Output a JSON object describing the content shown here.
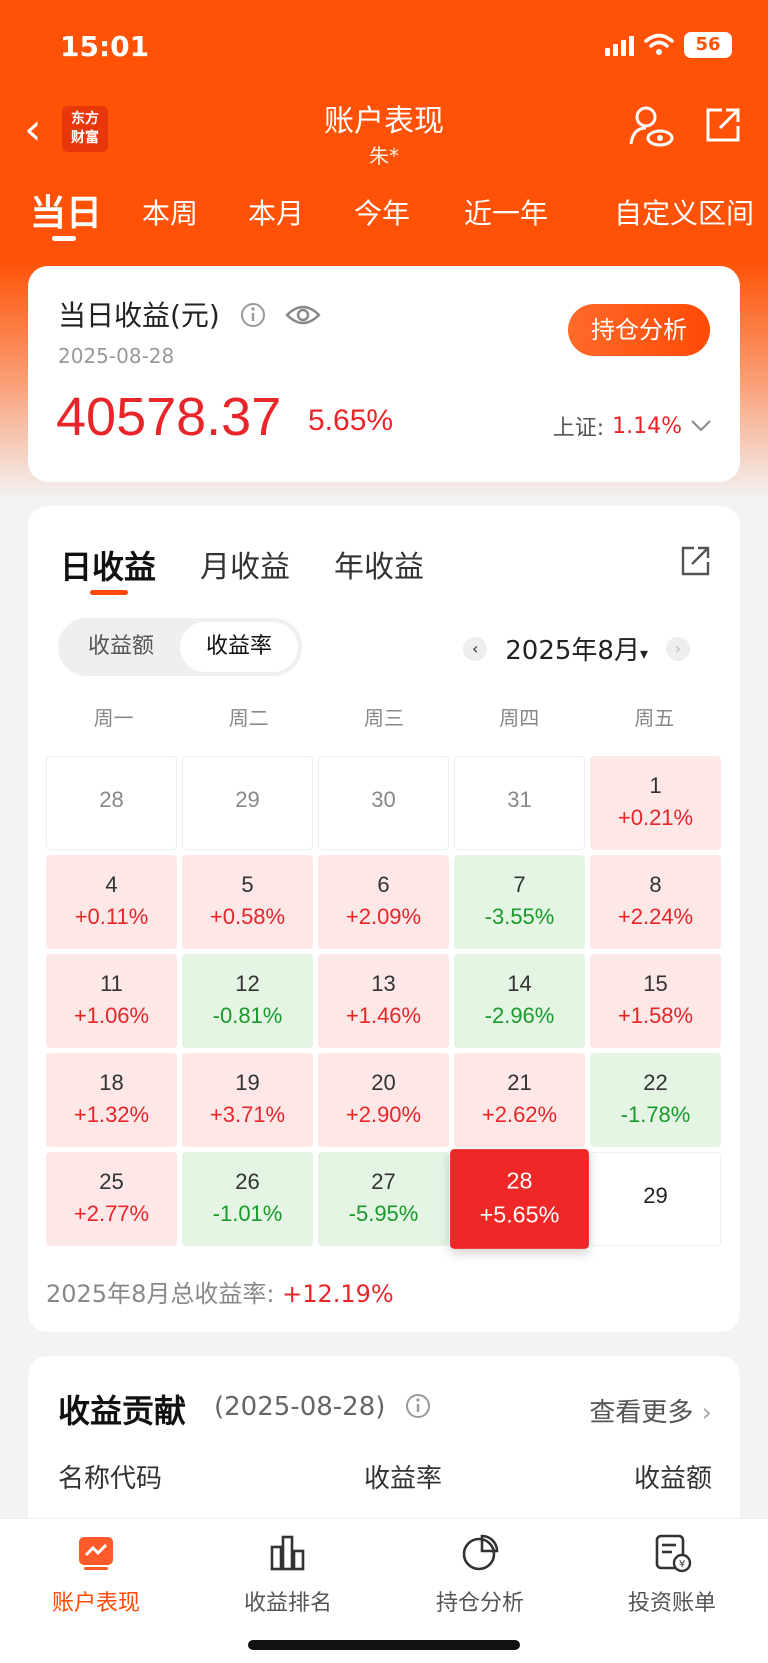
{
  "status": {
    "time": "15:01",
    "battery": "56"
  },
  "nav": {
    "logo": "东方财富",
    "title": "账户表现",
    "subtitle": "朱*"
  },
  "tabs": [
    "当日",
    "本周",
    "本月",
    "今年",
    "近一年",
    "自定义区间"
  ],
  "summary": {
    "title": "当日收益(元)",
    "date": "2025-08-28",
    "amount": "40578.37",
    "rate": "5.65%",
    "hold_button": "持仓分析",
    "index_label": "上证:",
    "index_value": "1.14%"
  },
  "calendar": {
    "tabs": [
      "日收益",
      "月收益",
      "年收益"
    ],
    "toggle": [
      "收益额",
      "收益率"
    ],
    "month": "2025年8月",
    "weekdays": [
      "周一",
      "周二",
      "周三",
      "周四",
      "周五"
    ],
    "cells": [
      {
        "d": "28",
        "r": ""
      },
      {
        "d": "29",
        "r": ""
      },
      {
        "d": "30",
        "r": ""
      },
      {
        "d": "31",
        "r": ""
      },
      {
        "d": "1",
        "r": "+0.21%"
      },
      {
        "d": "4",
        "r": "+0.11%"
      },
      {
        "d": "5",
        "r": "+0.58%"
      },
      {
        "d": "6",
        "r": "+2.09%"
      },
      {
        "d": "7",
        "r": "-3.55%"
      },
      {
        "d": "8",
        "r": "+2.24%"
      },
      {
        "d": "11",
        "r": "+1.06%"
      },
      {
        "d": "12",
        "r": "-0.81%"
      },
      {
        "d": "13",
        "r": "+1.46%"
      },
      {
        "d": "14",
        "r": "-2.96%"
      },
      {
        "d": "15",
        "r": "+1.58%"
      },
      {
        "d": "18",
        "r": "+1.32%"
      },
      {
        "d": "19",
        "r": "+3.71%"
      },
      {
        "d": "20",
        "r": "+2.90%"
      },
      {
        "d": "21",
        "r": "+2.62%"
      },
      {
        "d": "22",
        "r": "-1.78%"
      },
      {
        "d": "25",
        "r": "+2.77%"
      },
      {
        "d": "26",
        "r": "-1.01%"
      },
      {
        "d": "27",
        "r": "-5.95%"
      },
      {
        "d": "28",
        "r": "+5.65%"
      },
      {
        "d": "29",
        "r": ""
      }
    ],
    "total_label": "2025年8月总收益率:",
    "total_value": "+12.19%"
  },
  "contribution": {
    "title": "收益贡献",
    "date": "(2025-08-28)",
    "more": "查看更多",
    "headers": [
      "名称代码",
      "收益率",
      "收益额"
    ]
  },
  "bottom_nav": [
    "账户表现",
    "收益排名",
    "持仓分析",
    "投资账单"
  ],
  "colors": {
    "brand": "#ff5206",
    "up": "#e8262a",
    "down": "#1a9a2c"
  }
}
